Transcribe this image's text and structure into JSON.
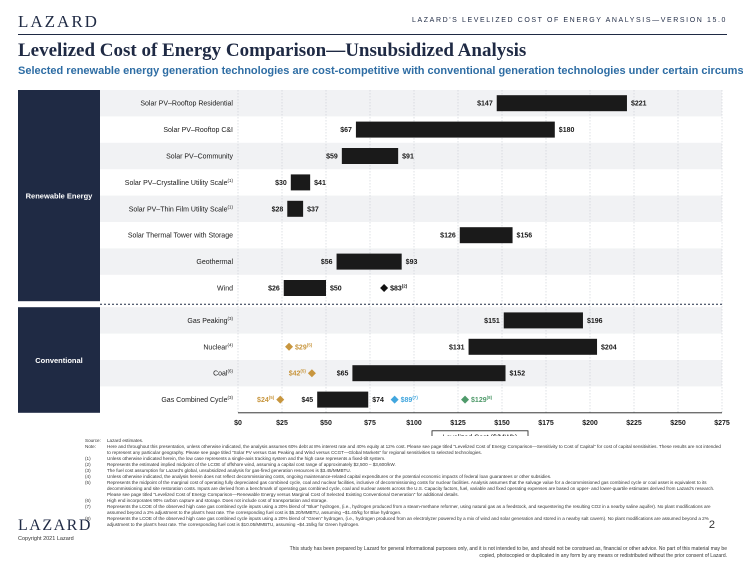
{
  "header": {
    "brand": "LAZARD",
    "right_text": "LAZARD'S LEVELIZED COST OF ENERGY ANALYSIS—VERSION 15.0",
    "title": "Levelized Cost of Energy Comparison—Unsubsidized Analysis",
    "subtitle": "Selected renewable energy generation technologies are cost-competitive with conventional generation technologies under certain circumstances"
  },
  "colors": {
    "navy": "#1f2a44",
    "bar": "#1a1a1a",
    "gold": "#c8963e",
    "blue": "#41a6de",
    "green": "#4f9a6a",
    "dark_marker": "#111111"
  },
  "chart_data": {
    "type": "floating-bar",
    "xlabel": "Levelized Cost ($/MWh)",
    "xlim": [
      0,
      275
    ],
    "xticks": [
      0,
      25,
      50,
      75,
      100,
      125,
      150,
      175,
      200,
      225,
      250,
      275
    ],
    "xtick_labels": [
      "$0",
      "$25",
      "$50",
      "$75",
      "$100",
      "$125",
      "$150",
      "$175",
      "$200",
      "$225",
      "$250",
      "$275"
    ],
    "groups": [
      {
        "name": "Renewable Energy",
        "rows": [
          0,
          1,
          2,
          3,
          4,
          5,
          6,
          7
        ]
      },
      {
        "name": "Conventional",
        "rows": [
          8,
          9,
          10,
          11
        ]
      }
    ],
    "rows": [
      {
        "label": "Solar PV–Rooftop Residential",
        "sup": "",
        "low": 147,
        "high": 221,
        "low_label": "$147",
        "high_label": "$221",
        "markers": []
      },
      {
        "label": "Solar PV–Rooftop C&I",
        "sup": "",
        "low": 67,
        "high": 180,
        "low_label": "$67",
        "high_label": "$180",
        "markers": []
      },
      {
        "label": "Solar PV–Community",
        "sup": "",
        "low": 59,
        "high": 91,
        "low_label": "$59",
        "high_label": "$91",
        "markers": []
      },
      {
        "label": "Solar PV–Crystalline Utility Scale",
        "sup": "(1)",
        "low": 30,
        "high": 41,
        "low_label": "$30",
        "high_label": "$41",
        "markers": []
      },
      {
        "label": "Solar PV–Thin Film Utility Scale",
        "sup": "(1)",
        "low": 28,
        "high": 37,
        "low_label": "$28",
        "high_label": "$37",
        "markers": []
      },
      {
        "label": "Solar Thermal Tower with Storage",
        "sup": "",
        "low": 126,
        "high": 156,
        "low_label": "$126",
        "high_label": "$156",
        "markers": []
      },
      {
        "label": "Geothermal",
        "sup": "",
        "low": 56,
        "high": 93,
        "low_label": "$56",
        "high_label": "$93",
        "markers": []
      },
      {
        "label": "Wind",
        "sup": "",
        "low": 26,
        "high": 50,
        "low_label": "$26",
        "high_label": "$50",
        "markers": [
          {
            "value": 83,
            "label": "$83",
            "sup": "(2)",
            "color": "#111111"
          }
        ]
      },
      {
        "label": "Gas Peaking",
        "sup": "(3)",
        "low": 151,
        "high": 196,
        "low_label": "$151",
        "high_label": "$196",
        "markers": []
      },
      {
        "label": "Nuclear",
        "sup": "(4)",
        "low": 131,
        "high": 204,
        "low_label": "$131",
        "high_label": "$204",
        "markers": [
          {
            "value": 29,
            "label": "$29",
            "sup": "(5)",
            "color": "#c8963e"
          }
        ]
      },
      {
        "label": "Coal",
        "sup": "(6)",
        "low": 65,
        "high": 152,
        "low_label": "$65",
        "high_label": "$152",
        "markers": [
          {
            "value": 42,
            "label": "$42",
            "sup": "(5)",
            "color": "#c8963e"
          }
        ]
      },
      {
        "label": "Gas Combined Cycle",
        "sup": "(3)",
        "low": 45,
        "high": 74,
        "low_label": "$45",
        "high_label": "$74",
        "markers": [
          {
            "value": 24,
            "label": "$24",
            "sup": "(5)",
            "color": "#c8963e"
          },
          {
            "value": 89,
            "label": "$89",
            "sup": "(7)",
            "color": "#41a6de"
          },
          {
            "value": 129,
            "label": "$129",
            "sup": "(8)",
            "color": "#4f9a6a"
          }
        ]
      }
    ]
  },
  "notes": [
    {
      "key": "Source:",
      "text": "Lazard estimates."
    },
    {
      "key": "Note:",
      "text": "Here and throughout this presentation, unless otherwise indicated, the analysis assumes 60% debt at 8% interest rate and 40% equity at 12% cost. Please see page titled \"Levelized Cost of Energy Comparison—Sensitivity to Cost of Capital\" for cost of capital sensitivities. These results are not intended to represent any particular geography. Please see page titled \"Solar PV versus Gas Peaking and Wind versus CCGT—Global Markets\" for regional sensitivities to selected technologies."
    },
    {
      "key": "(1)",
      "text": "Unless otherwise indicated herein, the low case represents a single-axis tracking system and the high case represents a fixed-tilt system."
    },
    {
      "key": "(2)",
      "text": "Represents the estimated implied midpoint of the LCOE of offshore wind, assuming a capital cost range of approximately $2,500 – $3,600/kW."
    },
    {
      "key": "(3)",
      "text": "The fuel cost assumption for Lazard's global, unsubsidized analysis for gas-fired generation resources is $3.45/MMBTU."
    },
    {
      "key": "(4)",
      "text": "Unless otherwise indicated, the analysis herein does not reflect decommissioning costs, ongoing maintenance-related capital expenditures or the potential economic impacts of federal loan guarantees or other subsidies."
    },
    {
      "key": "(5)",
      "text": "Represents the midpoint of the marginal cost of operating fully depreciated gas combined cycle, coal and nuclear facilities, inclusive of decommissioning costs for nuclear facilities. Analysis assumes that the salvage value for a decommissioned gas combined cycle or coal asset is equivalent to its decommissioning and site restoration costs. Inputs are derived from a benchmark of operating gas combined cycle, coal and nuclear assets across the U.S. Capacity factors, fuel, variable and fixed operating expenses are based on upper- and lower-quartile estimates derived from Lazard's research. Please see page titled \"Levelized Cost of Energy Comparison—Renewable Energy versus Marginal Cost of Selected Existing Conventional Generation\" for additional details."
    },
    {
      "key": "(6)",
      "text": "High end incorporates 90% carbon capture and storage. Does not include cost of transportation and storage."
    },
    {
      "key": "(7)",
      "text": "Represents the LCOE of the observed high case gas combined cycle inputs using a 20% blend of \"Blue\" hydrogen, (i.e., hydrogen produced from a steam-methane reformer, using natural gas as a feedstock, and sequestering the resulting CO2 in a nearby saline aquifer). No plant modifications are assumed beyond a 2% adjustment to the plant's heat rate. The corresponding fuel cost is $5.20/MMBTU, assuming ~$1.40/kg for Blue hydrogen."
    },
    {
      "key": "(8)",
      "text": "Represents the LCOE of the observed high case gas combined cycle inputs using a 20% blend of \"Green\" hydrogen, (i.e., hydrogen produced from an electrolyzer powered by a mix of wind and solar generation and stored in a nearby salt cavern). No plant modifications are assumed beyond a 2% adjustment to the plant's heat rate. The corresponding fuel cost is $10.05/MMBTU, assuming ~$4.15/kg for Green hydrogen."
    }
  ],
  "footer": {
    "logo": "LAZARD",
    "copyright": "Copyright 2021 Lazard",
    "page": "2",
    "disclaimer": "This study has been prepared by Lazard for general informational purposes only, and it is not intended to be, and should not be construed as, financial or other advice. No part of this material may be copied, photocopied or duplicated in any form by any means or redistributed without the prior consent of Lazard."
  }
}
